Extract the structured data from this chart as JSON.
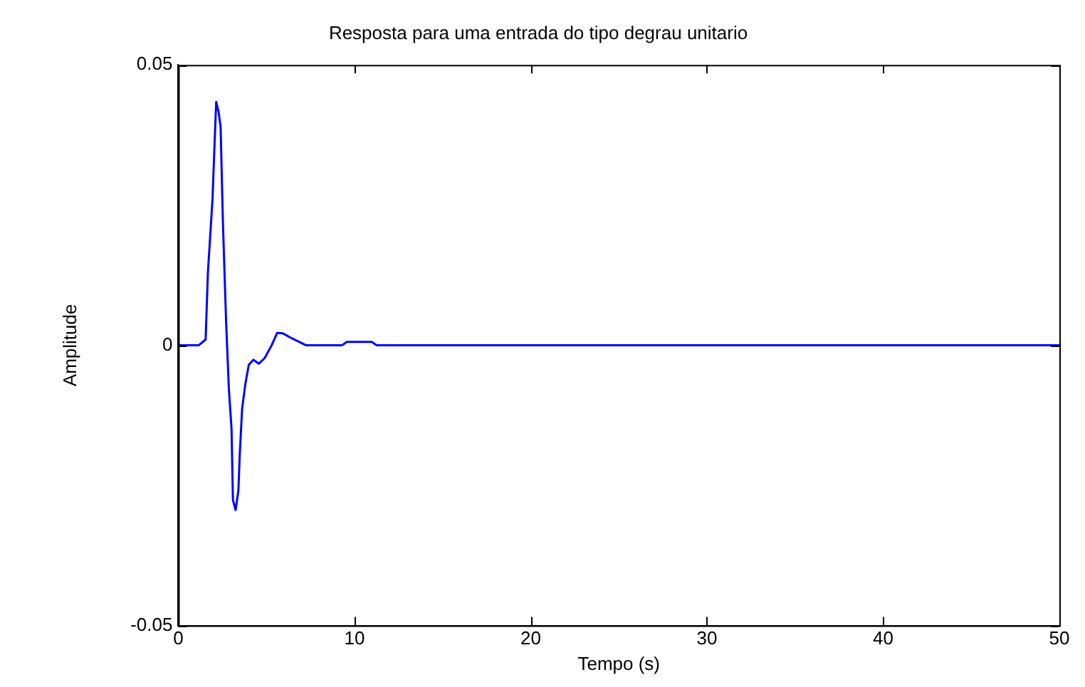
{
  "chart_data": {
    "type": "line",
    "title": "Resposta para uma entrada do tipo degrau unitario",
    "xlabel": "Tempo (s)",
    "ylabel": "Amplitude",
    "x": [
      0,
      1.16,
      1.55,
      1.68,
      1.94,
      2.07,
      2.15,
      2.28,
      2.4,
      2.53,
      2.71,
      2.87,
      3.02,
      3.1,
      3.25,
      3.41,
      3.49,
      3.62,
      3.8,
      4.0,
      4.26,
      4.57,
      4.9,
      5.3,
      5.61,
      5.94,
      6.46,
      7.24,
      9.3,
      9.56,
      10.98,
      11.24,
      50
    ],
    "series": [
      {
        "color": "#0000ff",
        "values": [
          0,
          0,
          0.001,
          0.013,
          0.026,
          0.037,
          0.0434,
          0.0417,
          0.039,
          0.022,
          0.0044,
          -0.0079,
          -0.0149,
          -0.0276,
          -0.0294,
          -0.0259,
          -0.0193,
          -0.0114,
          -0.007,
          -0.0035,
          -0.0026,
          -0.0033,
          -0.0023,
          0,
          0.0022,
          0.0021,
          0.0012,
          0,
          0,
          0.0006,
          0.0006,
          0,
          0
        ]
      }
    ],
    "xlim": [
      0,
      50
    ],
    "xticks": [
      0,
      10,
      20,
      30,
      40,
      50
    ],
    "ylim": [
      -0.05,
      0.05
    ],
    "yticks": [
      -0.05,
      0,
      0.05
    ],
    "grid": false,
    "legend": false,
    "marker": "none",
    "line_style": "solid"
  }
}
